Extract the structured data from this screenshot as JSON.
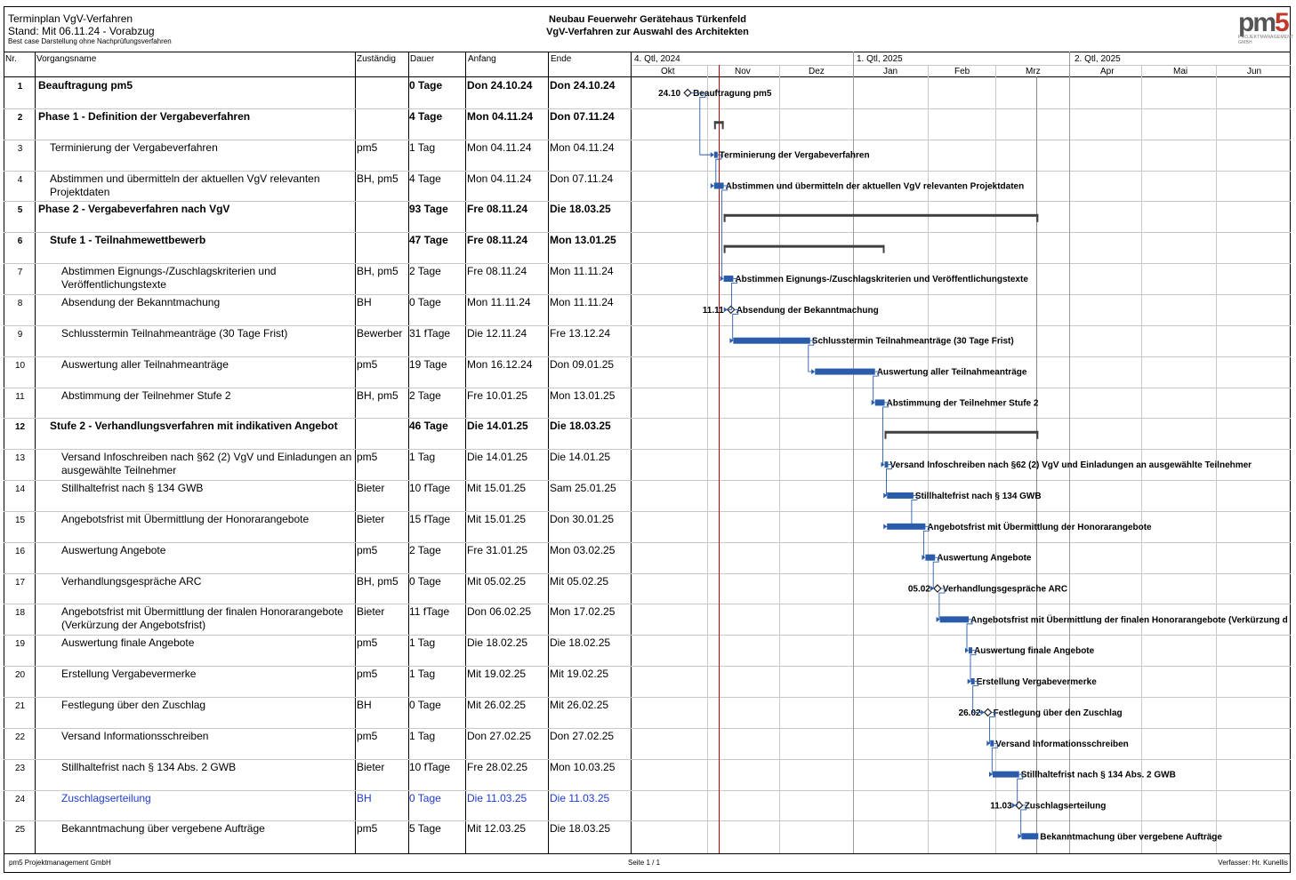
{
  "header": {
    "title": "Terminplan VgV-Verfahren",
    "stand": "Stand: Mit 06.11.24 - Vorabzug",
    "note": "Best case Darstellung ohne Nachprüfungsverfahren",
    "project_line1": "Neubau Feuerwehr Gerätehaus Türkenfeld",
    "project_line2": "VgV-Verfahren zur Auswahl des Architekten",
    "logo_text": "pm",
    "logo_digit": "5",
    "logo_sub": "PROJEKTMANAGEMENT GMBH"
  },
  "columns": {
    "nr": "Nr.",
    "name": "Vorgangsname",
    "resp": "Zuständig",
    "dur": "Dauer",
    "start": "Anfang",
    "end": "Ende"
  },
  "timeline": {
    "quarters": [
      "4. Qtl, 2024",
      "1. Qtl, 2025",
      "2. Qtl, 2025"
    ],
    "months": [
      "Okt",
      "Nov",
      "Dez",
      "Jan",
      "Feb",
      "Mrz",
      "Apr",
      "Mai",
      "Jun"
    ]
  },
  "tasks": [
    {
      "nr": "1",
      "name": "Beauftragung pm5",
      "resp": "",
      "dur": "0 Tage",
      "start": "Don 24.10.24",
      "end": "Don 24.10.24",
      "level": 1,
      "bold": true,
      "milestone": true,
      "s": "2024-10-24",
      "e": "2024-10-24",
      "gantt_label": "Beauftragung pm5",
      "ms_label": "24.10"
    },
    {
      "nr": "2",
      "name": "Phase 1 - Definition der Vergabeverfahren",
      "resp": "",
      "dur": "4 Tage",
      "start": "Mon 04.11.24",
      "end": "Don 07.11.24",
      "level": 1,
      "bold": true,
      "summary": true,
      "s": "2024-11-04",
      "e": "2024-11-07",
      "gantt_label": ""
    },
    {
      "nr": "3",
      "name": "Terminierung der Vergabeverfahren",
      "resp": "pm5",
      "dur": "1 Tag",
      "start": "Mon 04.11.24",
      "end": "Mon 04.11.24",
      "level": 2,
      "s": "2024-11-04",
      "e": "2024-11-04",
      "gantt_label": "Terminierung der Vergabeverfahren"
    },
    {
      "nr": "4",
      "name": "Abstimmen und übermitteln der aktuellen VgV relevanten Projektdaten",
      "resp": "BH, pm5",
      "dur": "4 Tage",
      "start": "Mon 04.11.24",
      "end": "Don 07.11.24",
      "level": 2,
      "s": "2024-11-04",
      "e": "2024-11-07",
      "gantt_label": "Abstimmen und übermitteln der aktuellen VgV relevanten Projektdaten"
    },
    {
      "nr": "5",
      "name": "Phase 2 - Vergabeverfahren nach VgV",
      "resp": "",
      "dur": "93 Tage",
      "start": "Fre 08.11.24",
      "end": "Die 18.03.25",
      "level": 1,
      "bold": true,
      "summary": true,
      "s": "2024-11-08",
      "e": "2025-03-18",
      "gantt_label": ""
    },
    {
      "nr": "6",
      "name": "Stufe 1 - Teilnahmewettbewerb",
      "resp": "",
      "dur": "47 Tage",
      "start": "Fre 08.11.24",
      "end": "Mon 13.01.25",
      "level": 2,
      "bold": true,
      "summary": true,
      "s": "2024-11-08",
      "e": "2025-01-13",
      "gantt_label": ""
    },
    {
      "nr": "7",
      "name": "Abstimmen Eignungs-/Zuschlagskriterien und Veröffentlichungstexte",
      "resp": "BH, pm5",
      "dur": "2 Tage",
      "start": "Fre 08.11.24",
      "end": "Mon 11.11.24",
      "level": 3,
      "s": "2024-11-08",
      "e": "2024-11-11",
      "gantt_label": "Abstimmen Eignungs-/Zuschlagskriterien und Veröffentlichungstexte"
    },
    {
      "nr": "8",
      "name": "Absendung der Bekanntmachung",
      "resp": "BH",
      "dur": "0 Tage",
      "start": "Mon 11.11.24",
      "end": "Mon 11.11.24",
      "level": 3,
      "milestone": true,
      "s": "2024-11-11",
      "e": "2024-11-11",
      "gantt_label": "Absendung der Bekanntmachung",
      "ms_label": "11.11"
    },
    {
      "nr": "9",
      "name": "Schlusstermin Teilnahmeanträge (30 Tage Frist)",
      "resp": "Bewerber",
      "dur": "31 fTage",
      "start": "Die 12.11.24",
      "end": "Fre 13.12.24",
      "level": 3,
      "s": "2024-11-12",
      "e": "2024-12-13",
      "gantt_label": "Schlusstermin Teilnahmeanträge (30 Tage Frist)"
    },
    {
      "nr": "10",
      "name": "Auswertung aller Teilnahmeanträge",
      "resp": "pm5",
      "dur": "19 Tage",
      "start": "Mon 16.12.24",
      "end": "Don 09.01.25",
      "level": 3,
      "s": "2024-12-16",
      "e": "2025-01-09",
      "gantt_label": "Auswertung aller Teilnahmeanträge"
    },
    {
      "nr": "11",
      "name": "Abstimmung der Teilnehmer Stufe 2",
      "resp": "BH, pm5",
      "dur": "2 Tage",
      "start": "Fre 10.01.25",
      "end": "Mon 13.01.25",
      "level": 3,
      "s": "2025-01-10",
      "e": "2025-01-13",
      "gantt_label": "Abstimmung der Teilnehmer Stufe 2"
    },
    {
      "nr": "12",
      "name": "Stufe 2 - Verhandlungsverfahren mit indikativen Angebot",
      "resp": "",
      "dur": "46 Tage",
      "start": "Die 14.01.25",
      "end": "Die 18.03.25",
      "level": 2,
      "bold": true,
      "summary": true,
      "s": "2025-01-14",
      "e": "2025-03-18",
      "gantt_label": ""
    },
    {
      "nr": "13",
      "name": "Versand Infoschreiben nach §62 (2) VgV und Einladungen an ausgewählte Teilnehmer",
      "resp": "pm5",
      "dur": "1 Tag",
      "start": "Die 14.01.25",
      "end": "Die 14.01.25",
      "level": 3,
      "s": "2025-01-14",
      "e": "2025-01-14",
      "gantt_label": "Versand Infoschreiben nach §62 (2) VgV und Einladungen an ausgewählte Teilnehmer"
    },
    {
      "nr": "14",
      "name": "Stillhaltefrist nach § 134 GWB",
      "resp": "Bieter",
      "dur": "10 fTage",
      "start": "Mit 15.01.25",
      "end": "Sam 25.01.25",
      "level": 3,
      "s": "2025-01-15",
      "e": "2025-01-25",
      "gantt_label": "Stillhaltefrist nach § 134 GWB"
    },
    {
      "nr": "15",
      "name": "Angebotsfrist mit Übermittlung der Honorarangebote",
      "resp": "Bieter",
      "dur": "15 fTage",
      "start": "Mit 15.01.25",
      "end": "Don 30.01.25",
      "level": 3,
      "s": "2025-01-15",
      "e": "2025-01-30",
      "gantt_label": "Angebotsfrist mit Übermittlung der Honorarangebote"
    },
    {
      "nr": "16",
      "name": "Auswertung Angebote",
      "resp": "pm5",
      "dur": "2 Tage",
      "start": "Fre 31.01.25",
      "end": "Mon 03.02.25",
      "level": 3,
      "s": "2025-01-31",
      "e": "2025-02-03",
      "gantt_label": "Auswertung Angebote"
    },
    {
      "nr": "17",
      "name": "Verhandlungsgespräche ARC",
      "resp": "BH, pm5",
      "dur": "0 Tage",
      "start": "Mit 05.02.25",
      "end": "Mit 05.02.25",
      "level": 3,
      "milestone": true,
      "s": "2025-02-05",
      "e": "2025-02-05",
      "gantt_label": "Verhandlungsgespräche ARC",
      "ms_label": "05.02"
    },
    {
      "nr": "18",
      "name": "Angebotsfrist mit Übermittlung der finalen Honorarangebote (Verkürzung der Angebotsfrist)",
      "resp": "Bieter",
      "dur": "11 fTage",
      "start": "Don 06.02.25",
      "end": "Mon 17.02.25",
      "level": 3,
      "s": "2025-02-06",
      "e": "2025-02-17",
      "gantt_label": "Angebotsfrist mit Übermittlung der finalen Honorarangebote (Verkürzung d"
    },
    {
      "nr": "19",
      "name": "Auswertung finale Angebote",
      "resp": "pm5",
      "dur": "1 Tag",
      "start": "Die 18.02.25",
      "end": "Die 18.02.25",
      "level": 3,
      "s": "2025-02-18",
      "e": "2025-02-18",
      "gantt_label": "Auswertung finale Angebote"
    },
    {
      "nr": "20",
      "name": "Erstellung Vergabevermerke",
      "resp": "pm5",
      "dur": "1 Tag",
      "start": "Mit 19.02.25",
      "end": "Mit 19.02.25",
      "level": 3,
      "s": "2025-02-19",
      "e": "2025-02-19",
      "gantt_label": "Erstellung Vergabevermerke"
    },
    {
      "nr": "21",
      "name": "Festlegung über den Zuschlag",
      "resp": "BH",
      "dur": "0 Tage",
      "start": "Mit 26.02.25",
      "end": "Mit 26.02.25",
      "level": 3,
      "milestone": true,
      "s": "2025-02-26",
      "e": "2025-02-26",
      "gantt_label": "Festlegung über den Zuschlag",
      "ms_label": "26.02"
    },
    {
      "nr": "22",
      "name": "Versand Informationsschreiben",
      "resp": "pm5",
      "dur": "1 Tag",
      "start": "Don 27.02.25",
      "end": "Don 27.02.25",
      "level": 3,
      "s": "2025-02-27",
      "e": "2025-02-27",
      "gantt_label": "Versand Informationsschreiben"
    },
    {
      "nr": "23",
      "name": "Stillhaltefrist nach § 134 Abs. 2 GWB",
      "resp": "Bieter",
      "dur": "10 fTage",
      "start": "Fre 28.02.25",
      "end": "Mon 10.03.25",
      "level": 3,
      "s": "2025-02-28",
      "e": "2025-03-10",
      "gantt_label": "Stillhaltefrist nach § 134 Abs. 2 GWB"
    },
    {
      "nr": "24",
      "name": "Zuschlagserteilung",
      "resp": "BH",
      "dur": "0 Tage",
      "start": "Die 11.03.25",
      "end": "Die 11.03.25",
      "level": 3,
      "milestone": true,
      "blue": true,
      "s": "2025-03-11",
      "e": "2025-03-11",
      "gantt_label": "Zuschlagserteilung",
      "ms_label": "11.03"
    },
    {
      "nr": "25",
      "name": "Bekanntmachung über vergebene Aufträge",
      "resp": "pm5",
      "dur": "5 Tage",
      "start": "Mit 12.03.25",
      "end": "Die 18.03.25",
      "level": 3,
      "s": "2025-03-12",
      "e": "2025-03-18",
      "gantt_label": "Bekanntmachung über vergebene Aufträge"
    }
  ],
  "colors": {
    "bar": "#2a5caa",
    "summary": "#404040",
    "today_line": "#c00000",
    "grid": "#c8c8c8",
    "link": "#2a5caa"
  },
  "today": "2024-11-06",
  "footer": {
    "company": "pm5 Projektmanagement GmbH",
    "page": "Seite 1 / 1",
    "author": "Verfasser: Hr. Kunellis"
  }
}
